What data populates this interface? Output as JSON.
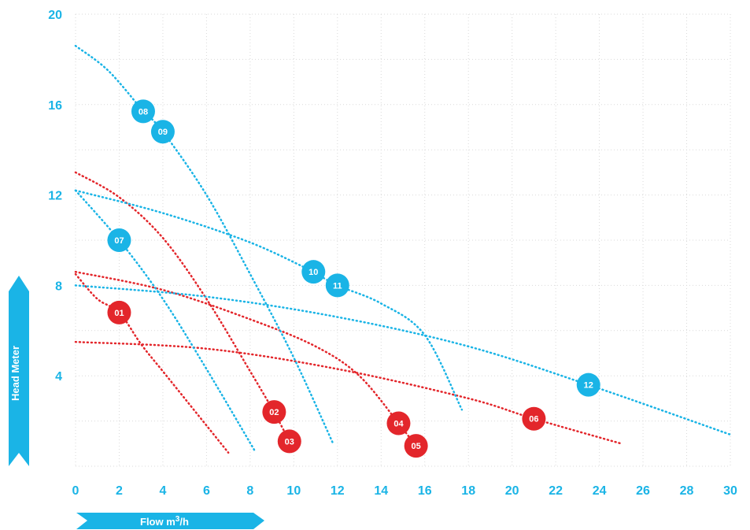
{
  "colors": {
    "blue": "#1ab4e6",
    "red": "#e3262b",
    "grid": "#d9d9d9"
  },
  "axes": {
    "xlabel": "Flow m",
    "xlabel_sup": "3",
    "xlabel_suffix": "/h",
    "ylabel": "Head Meter"
  },
  "chart_data": {
    "type": "line",
    "xlabel": "Flow m3/h",
    "ylabel": "Head Meter",
    "xlim": [
      0,
      30
    ],
    "ylim": [
      0,
      20
    ],
    "x_ticks": [
      "0",
      "2",
      "4",
      "6",
      "8",
      "10",
      "12",
      "14",
      "16",
      "18",
      "20",
      "22",
      "24",
      "26",
      "28",
      "30"
    ],
    "y_ticks": [
      "4",
      "8",
      "12",
      "16",
      "20"
    ],
    "grid": true,
    "series": [
      {
        "name": "01",
        "color": "red",
        "points": [
          [
            0,
            8.5
          ],
          [
            1,
            7.4
          ],
          [
            2,
            6.8
          ],
          [
            3,
            5.4
          ],
          [
            4,
            4.2
          ],
          [
            5,
            3.0
          ],
          [
            6,
            1.8
          ],
          [
            7,
            0.6
          ]
        ],
        "marker": [
          2,
          6.8
        ]
      },
      {
        "name": "02",
        "color": "red",
        "points": [
          [
            0,
            13.0
          ],
          [
            2,
            11.9
          ],
          [
            4,
            10.1
          ],
          [
            6,
            7.4
          ],
          [
            8,
            4.2
          ],
          [
            9.1,
            2.4
          ]
        ],
        "marker": [
          9.1,
          2.4
        ]
      },
      {
        "name": "03",
        "color": "red",
        "points": [
          [
            9.1,
            2.4
          ],
          [
            9.8,
            1.1
          ]
        ],
        "marker": [
          9.8,
          1.1
        ]
      },
      {
        "name": "04",
        "color": "red",
        "points": [
          [
            0,
            8.6
          ],
          [
            4,
            7.8
          ],
          [
            8,
            6.5
          ],
          [
            11,
            5.3
          ],
          [
            13,
            4.0
          ],
          [
            14.8,
            1.9
          ]
        ],
        "marker": [
          14.8,
          1.9
        ]
      },
      {
        "name": "05",
        "color": "red",
        "points": [
          [
            14.8,
            1.9
          ],
          [
            15.6,
            0.9
          ]
        ],
        "marker": [
          15.6,
          0.9
        ]
      },
      {
        "name": "06",
        "color": "red",
        "points": [
          [
            0,
            5.5
          ],
          [
            6,
            5.2
          ],
          [
            12,
            4.3
          ],
          [
            18,
            3.0
          ],
          [
            21,
            2.1
          ],
          [
            25,
            1.0
          ]
        ],
        "marker": [
          21,
          2.1
        ]
      },
      {
        "name": "07",
        "color": "blue",
        "points": [
          [
            0,
            12.2
          ],
          [
            2,
            10.0
          ],
          [
            4,
            7.4
          ],
          [
            6,
            4.3
          ],
          [
            8.2,
            0.7
          ]
        ],
        "marker": [
          2,
          10.0
        ]
      },
      {
        "name": "08",
        "color": "blue",
        "points": [
          [
            0,
            18.6
          ],
          [
            1.5,
            17.5
          ],
          [
            3.1,
            15.7
          ]
        ],
        "marker": [
          3.1,
          15.7
        ]
      },
      {
        "name": "09",
        "color": "blue",
        "points": [
          [
            3.1,
            15.7
          ],
          [
            4,
            14.8
          ],
          [
            6,
            12.0
          ],
          [
            8,
            8.5
          ],
          [
            10,
            4.8
          ],
          [
            11.8,
            1.0
          ]
        ],
        "marker": [
          4,
          14.8
        ]
      },
      {
        "name": "10",
        "color": "blue",
        "points": [
          [
            0,
            12.2
          ],
          [
            4,
            11.2
          ],
          [
            8,
            9.9
          ],
          [
            10.9,
            8.6
          ]
        ],
        "marker": [
          10.9,
          8.6
        ]
      },
      {
        "name": "11",
        "color": "blue",
        "points": [
          [
            10.9,
            8.6
          ],
          [
            12,
            8.0
          ],
          [
            14,
            7.2
          ],
          [
            16,
            5.8
          ],
          [
            17.7,
            2.5
          ]
        ],
        "marker": [
          12,
          8.0
        ]
      },
      {
        "name": "12",
        "color": "blue",
        "points": [
          [
            0,
            8.0
          ],
          [
            6,
            7.5
          ],
          [
            12,
            6.6
          ],
          [
            18,
            5.3
          ],
          [
            23.5,
            3.6
          ],
          [
            30,
            1.4
          ]
        ],
        "marker": [
          23.5,
          3.6
        ]
      }
    ]
  }
}
